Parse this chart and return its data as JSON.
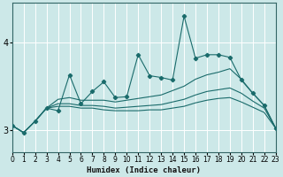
{
  "xlabel": "Humidex (Indice chaleur)",
  "ylabel": "",
  "bg_color": "#cce8e8",
  "grid_color": "#ffffff",
  "line_color": "#1a6b6b",
  "x_values": [
    0,
    1,
    2,
    3,
    4,
    5,
    6,
    7,
    8,
    9,
    10,
    11,
    12,
    13,
    14,
    15,
    16,
    17,
    18,
    19,
    20,
    21,
    22,
    23
  ],
  "line1_y": [
    3.05,
    2.97,
    3.1,
    3.25,
    3.22,
    3.63,
    3.3,
    3.44,
    3.55,
    3.37,
    3.38,
    3.86,
    3.62,
    3.6,
    3.57,
    4.3,
    3.82,
    3.86,
    3.86,
    3.83,
    3.57,
    3.42,
    3.28,
    3.02
  ],
  "line2_y": [
    3.05,
    2.97,
    3.1,
    3.25,
    3.35,
    3.37,
    3.34,
    3.34,
    3.34,
    3.32,
    3.34,
    3.36,
    3.38,
    3.4,
    3.45,
    3.5,
    3.58,
    3.63,
    3.66,
    3.7,
    3.58,
    3.42,
    3.28,
    3.02
  ],
  "line3_y": [
    3.05,
    2.97,
    3.1,
    3.25,
    3.3,
    3.3,
    3.28,
    3.28,
    3.27,
    3.25,
    3.26,
    3.27,
    3.28,
    3.29,
    3.32,
    3.35,
    3.4,
    3.44,
    3.46,
    3.48,
    3.42,
    3.33,
    3.25,
    3.02
  ],
  "line4_y": [
    3.05,
    2.97,
    3.1,
    3.25,
    3.27,
    3.27,
    3.25,
    3.25,
    3.23,
    3.22,
    3.22,
    3.22,
    3.23,
    3.23,
    3.25,
    3.27,
    3.31,
    3.34,
    3.36,
    3.37,
    3.32,
    3.26,
    3.2,
    3.02
  ],
  "ylim": [
    2.75,
    4.45
  ],
  "xlim": [
    0,
    23
  ],
  "yticks": [
    3,
    4
  ],
  "xticks": [
    0,
    1,
    2,
    3,
    4,
    5,
    6,
    7,
    8,
    9,
    10,
    11,
    12,
    13,
    14,
    15,
    16,
    17,
    18,
    19,
    20,
    21,
    22,
    23
  ]
}
